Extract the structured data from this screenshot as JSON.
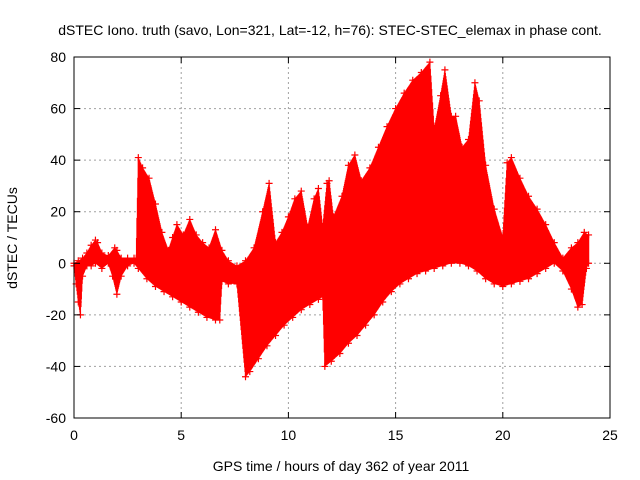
{
  "chart_data": {
    "type": "scatter",
    "title": "dSTEC Iono. truth (savo, Lon=321, Lat=-12, h=76): STEC-STEC_elemax in phase cont.",
    "xlabel": "GPS time / hours of day 362 of year 2011",
    "ylabel": "dSTEC  / TECUs",
    "xlim": [
      0,
      25
    ],
    "ylim": [
      -60,
      80
    ],
    "xticks": [
      0,
      5,
      10,
      15,
      20,
      25
    ],
    "yticks": [
      -60,
      -40,
      -20,
      0,
      20,
      40,
      60,
      80
    ],
    "grid": true,
    "marker": "+",
    "color": "#ff0000",
    "series": [
      {
        "description_free": true,
        "upper": [
          [
            0.0,
            0
          ],
          [
            0.2,
            1
          ],
          [
            0.4,
            2
          ],
          [
            0.6,
            4
          ],
          [
            0.8,
            7
          ],
          [
            1.0,
            9
          ],
          [
            1.1,
            8
          ],
          [
            1.3,
            4
          ],
          [
            1.6,
            3
          ],
          [
            1.9,
            6
          ],
          [
            2.0,
            5
          ],
          [
            2.2,
            2
          ],
          [
            2.5,
            2
          ],
          [
            2.8,
            2
          ],
          [
            2.9,
            2
          ],
          [
            3.0,
            41
          ],
          [
            3.2,
            37
          ],
          [
            3.5,
            33
          ],
          [
            3.8,
            23
          ],
          [
            4.1,
            12
          ],
          [
            4.4,
            5
          ],
          [
            4.6,
            10
          ],
          [
            4.8,
            15
          ],
          [
            5.1,
            11
          ],
          [
            5.4,
            17
          ],
          [
            5.7,
            11
          ],
          [
            6.0,
            8
          ],
          [
            6.3,
            6
          ],
          [
            6.6,
            13
          ],
          [
            6.9,
            5
          ],
          [
            7.2,
            1
          ],
          [
            7.6,
            -1
          ],
          [
            8.0,
            1
          ],
          [
            8.4,
            6
          ],
          [
            8.8,
            20
          ],
          [
            9.1,
            31
          ],
          [
            9.4,
            8
          ],
          [
            9.7,
            12
          ],
          [
            10.0,
            18
          ],
          [
            10.3,
            25
          ],
          [
            10.6,
            28
          ],
          [
            10.9,
            14
          ],
          [
            11.2,
            25
          ],
          [
            11.4,
            29
          ],
          [
            11.6,
            14
          ],
          [
            11.8,
            31
          ],
          [
            11.9,
            32
          ],
          [
            12.1,
            18
          ],
          [
            12.5,
            26
          ],
          [
            12.8,
            38
          ],
          [
            13.1,
            42
          ],
          [
            13.4,
            32
          ],
          [
            13.8,
            37
          ],
          [
            14.2,
            45
          ],
          [
            14.6,
            53
          ],
          [
            15.0,
            60
          ],
          [
            15.4,
            66
          ],
          [
            15.8,
            71
          ],
          [
            16.2,
            74
          ],
          [
            16.6,
            78
          ],
          [
            16.8,
            52
          ],
          [
            17.1,
            65
          ],
          [
            17.3,
            75
          ],
          [
            17.6,
            57
          ],
          [
            17.8,
            57
          ],
          [
            18.1,
            45
          ],
          [
            18.4,
            48
          ],
          [
            18.7,
            70
          ],
          [
            18.9,
            63
          ],
          [
            19.2,
            38
          ],
          [
            19.6,
            21
          ],
          [
            20.0,
            10
          ],
          [
            20.2,
            39
          ],
          [
            20.4,
            41
          ],
          [
            20.8,
            33
          ],
          [
            21.2,
            26
          ],
          [
            21.6,
            21
          ],
          [
            22.0,
            15
          ],
          [
            22.4,
            8
          ],
          [
            22.8,
            2
          ],
          [
            23.2,
            6
          ],
          [
            23.5,
            8
          ],
          [
            23.8,
            12
          ],
          [
            24.0,
            11
          ]
        ],
        "lower": [
          [
            0.0,
            -1
          ],
          [
            0.1,
            -8
          ],
          [
            0.2,
            -15
          ],
          [
            0.3,
            -20
          ],
          [
            0.4,
            -5
          ],
          [
            0.6,
            -1
          ],
          [
            0.8,
            -1
          ],
          [
            1.0,
            0
          ],
          [
            1.3,
            -2
          ],
          [
            1.6,
            0
          ],
          [
            1.8,
            -5
          ],
          [
            2.0,
            -12
          ],
          [
            2.2,
            -5
          ],
          [
            2.5,
            -1
          ],
          [
            2.8,
            0
          ],
          [
            3.0,
            -2
          ],
          [
            3.4,
            -6
          ],
          [
            3.8,
            -9
          ],
          [
            4.2,
            -11
          ],
          [
            4.6,
            -13
          ],
          [
            5.0,
            -15
          ],
          [
            5.4,
            -17
          ],
          [
            5.8,
            -19
          ],
          [
            6.2,
            -21
          ],
          [
            6.6,
            -22
          ],
          [
            6.8,
            -22
          ],
          [
            6.9,
            -7
          ],
          [
            7.2,
            -8
          ],
          [
            7.6,
            -8
          ],
          [
            8.0,
            -44
          ],
          [
            8.2,
            -42
          ],
          [
            8.6,
            -37
          ],
          [
            9.0,
            -32
          ],
          [
            9.4,
            -28
          ],
          [
            9.8,
            -24
          ],
          [
            10.2,
            -21
          ],
          [
            10.6,
            -18
          ],
          [
            11.0,
            -16
          ],
          [
            11.4,
            -14
          ],
          [
            11.6,
            -13
          ],
          [
            11.7,
            -40
          ],
          [
            12.0,
            -38
          ],
          [
            12.4,
            -35
          ],
          [
            12.8,
            -31
          ],
          [
            13.2,
            -28
          ],
          [
            13.6,
            -24
          ],
          [
            14.0,
            -20
          ],
          [
            14.4,
            -15
          ],
          [
            14.8,
            -11
          ],
          [
            15.2,
            -8
          ],
          [
            15.6,
            -6
          ],
          [
            16.0,
            -4
          ],
          [
            16.4,
            -3
          ],
          [
            16.8,
            -2
          ],
          [
            17.2,
            -1
          ],
          [
            17.6,
            0
          ],
          [
            18.0,
            0
          ],
          [
            18.4,
            -1
          ],
          [
            18.8,
            -3
          ],
          [
            19.2,
            -6
          ],
          [
            19.6,
            -8
          ],
          [
            20.0,
            -9
          ],
          [
            20.4,
            -8
          ],
          [
            20.8,
            -7
          ],
          [
            21.2,
            -6
          ],
          [
            21.6,
            -4
          ],
          [
            22.0,
            -2
          ],
          [
            22.4,
            0
          ],
          [
            22.8,
            -3
          ],
          [
            23.2,
            -10
          ],
          [
            23.5,
            -17
          ],
          [
            23.7,
            -16
          ],
          [
            23.9,
            -2
          ],
          [
            24.0,
            0
          ]
        ]
      }
    ]
  }
}
